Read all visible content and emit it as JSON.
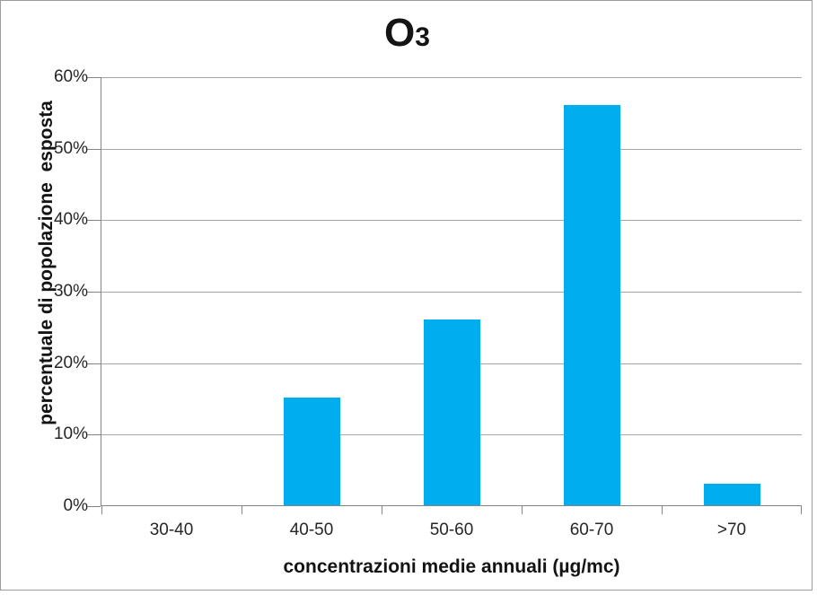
{
  "chart_data": {
    "type": "bar",
    "title": "O3",
    "title_main": "O",
    "title_sub": "3",
    "categories": [
      "30-40",
      "40-50",
      "50-60",
      "60-70",
      ">70"
    ],
    "values": [
      0,
      15,
      26,
      56,
      3
    ],
    "xlabel": "concentrazioni medie annuali (µg/mc)",
    "ylabel": "percentuale di popolazione  esposta",
    "y_ticks": [
      "0%",
      "10%",
      "20%",
      "30%",
      "40%",
      "50%",
      "60%"
    ],
    "ylim": [
      0,
      60
    ],
    "y_tick_step": 10,
    "grid": "horizontal",
    "legend": "none",
    "bar_color": "#00AEEF",
    "axis_color": "#848484",
    "gridline_color": "#A6A6A6",
    "text_color": "#262626"
  }
}
